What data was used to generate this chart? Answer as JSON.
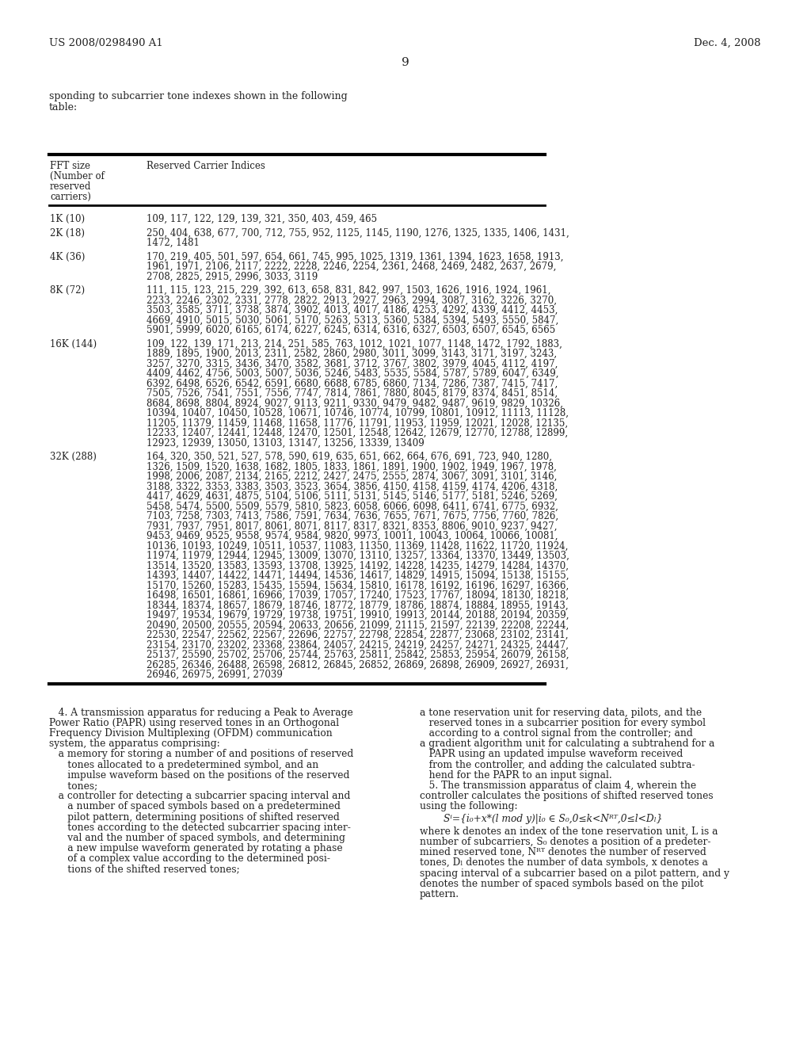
{
  "header_left": "US 2008/0298490 A1",
  "header_right": "Dec. 4, 2008",
  "page_number": "9",
  "intro_text": "sponding to subcarrier tone indexes shown in the following\ntable:",
  "table_col1_header": "FFT size\n(Number of\nreserved\ncarriers)",
  "table_col2_header": "Reserved Carrier Indices",
  "table_rows": [
    {
      "label": "1K (10)",
      "data": "109, 117, 122, 129, 139, 321, 350, 403, 459, 465"
    },
    {
      "label": "2K (18)",
      "data": "250, 404, 638, 677, 700, 712, 755, 952, 1125, 1145, 1190, 1276, 1325, 1335, 1406, 1431,\n1472, 1481"
    },
    {
      "label": "4K (36)",
      "data": "170, 219, 405, 501, 597, 654, 661, 745, 995, 1025, 1319, 1361, 1394, 1623, 1658, 1913,\n1961, 1971, 2106, 2117, 2222, 2228, 2246, 2254, 2361, 2468, 2469, 2482, 2637, 2679,\n2708, 2825, 2915, 2996, 3033, 3119"
    },
    {
      "label": "8K (72)",
      "data": "111, 115, 123, 215, 229, 392, 613, 658, 831, 842, 997, 1503, 1626, 1916, 1924, 1961,\n2233, 2246, 2302, 2331, 2778, 2822, 2913, 2927, 2963, 2994, 3087, 3162, 3226, 3270,\n3503, 3585, 3711, 3738, 3874, 3902, 4013, 4017, 4186, 4253, 4292, 4339, 4412, 4453,\n4669, 4910, 5015, 5030, 5061, 5170, 5263, 5313, 5360, 5384, 5394, 5493, 5550, 5847,\n5901, 5999, 6020, 6165, 6174, 6227, 6245, 6314, 6316, 6327, 6503, 6507, 6545, 6565"
    },
    {
      "label": "16K (144)",
      "data": "109, 122, 139, 171, 213, 214, 251, 585, 763, 1012, 1021, 1077, 1148, 1472, 1792, 1883,\n1889, 1895, 1900, 2013, 2311, 2582, 2860, 2980, 3011, 3099, 3143, 3171, 3197, 3243,\n3257, 3270, 3315, 3436, 3470, 3582, 3681, 3712, 3767, 3802, 3979, 4045, 4112, 4197,\n4409, 4462, 4756, 5003, 5007, 5036, 5246, 5483, 5535, 5584, 5787, 5789, 6047, 6349,\n6392, 6498, 6526, 6542, 6591, 6680, 6688, 6785, 6860, 7134, 7286, 7387, 7415, 7417,\n7505, 7526, 7541, 7551, 7556, 7747, 7814, 7861, 7880, 8045, 8179, 8374, 8451, 8514,\n8684, 8698, 8804, 8924, 9027, 9113, 9211, 9330, 9479, 9482, 9487, 9619, 9829, 10326,\n10394, 10407, 10450, 10528, 10671, 10746, 10774, 10799, 10801, 10912, 11113, 11128,\n11205, 11379, 11459, 11468, 11658, 11776, 11791, 11953, 11959, 12021, 12028, 12135,\n12233, 12407, 12441, 12448, 12470, 12501, 12548, 12642, 12679, 12770, 12788, 12899,\n12923, 12939, 13050, 13103, 13147, 13256, 13339, 13409"
    },
    {
      "label": "32K (288)",
      "data": "164, 320, 350, 521, 527, 578, 590, 619, 635, 651, 662, 664, 676, 691, 723, 940, 1280,\n1326, 1509, 1520, 1638, 1682, 1805, 1833, 1861, 1891, 1900, 1902, 1949, 1967, 1978,\n1998, 2006, 2087, 2134, 2165, 2212, 2427, 2475, 2555, 2874, 3067, 3091, 3101, 3146,\n3188, 3322, 3353, 3383, 3503, 3523, 3654, 3856, 4150, 4158, 4159, 4174, 4206, 4318,\n4417, 4629, 4631, 4875, 5104, 5106, 5111, 5131, 5145, 5146, 5177, 5181, 5246, 5269,\n5458, 5474, 5500, 5509, 5579, 5810, 5823, 6058, 6066, 6098, 6411, 6741, 6775, 6932,\n7103, 7258, 7303, 7413, 7586, 7591, 7634, 7636, 7655, 7671, 7675, 7756, 7760, 7826,\n7931, 7937, 7951, 8017, 8061, 8071, 8117, 8317, 8321, 8353, 8806, 9010, 9237, 9427,\n9453, 9469, 9525, 9558, 9574, 9584, 9820, 9973, 10011, 10043, 10064, 10066, 10081,\n10136, 10193, 10249, 10511, 10537, 11083, 11350, 11369, 11428, 11622, 11720, 11924,\n11974, 11979, 12944, 12945, 13009, 13070, 13110, 13257, 13364, 13370, 13449, 13503,\n13514, 13520, 13583, 13593, 13708, 13925, 14192, 14228, 14235, 14279, 14284, 14370,\n14393, 14407, 14422, 14471, 14494, 14536, 14617, 14829, 14915, 15094, 15138, 15155,\n15170, 15260, 15283, 15435, 15594, 15634, 15810, 16178, 16192, 16196, 16297, 16366,\n16498, 16501, 16861, 16966, 17039, 17057, 17240, 17523, 17767, 18094, 18130, 18218,\n18344, 18374, 18657, 18679, 18746, 18772, 18779, 18786, 18874, 18884, 18955, 19143,\n19497, 19534, 19679, 19729, 19738, 19751, 19910, 19913, 20144, 20188, 20194, 20359,\n20490, 20500, 20555, 20594, 20633, 20656, 21099, 21115, 21597, 22139, 22208, 22244,\n22530, 22547, 22562, 22567, 22696, 22757, 22798, 22854, 22877, 23068, 23102, 23141,\n23154, 23170, 23202, 23368, 23864, 24057, 24215, 24219, 24257, 24271, 24325, 24447,\n25137, 25590, 25702, 25706, 25744, 25763, 25811, 25842, 25853, 25954, 26079, 26158,\n26285, 26346, 26488, 26598, 26812, 26845, 26852, 26869, 26898, 26909, 26927, 26931,\n26946, 26975, 26991, 27039"
    }
  ],
  "claim4_left_lines": [
    "   4. A transmission apparatus for reducing a Peak to Average",
    "Power Ratio (PAPR) using reserved tones in an Orthogonal",
    "Frequency Division Multiplexing (OFDM) communication",
    "system, the apparatus comprising:",
    "   a memory for storing a number of and positions of reserved",
    "      tones allocated to a predetermined symbol, and an",
    "      impulse waveform based on the positions of the reserved",
    "      tones;",
    "   a controller for detecting a subcarrier spacing interval and",
    "      a number of spaced symbols based on a predetermined",
    "      pilot pattern, determining positions of shifted reserved",
    "      tones according to the detected subcarrier spacing inter-",
    "      val and the number of spaced symbols, and determining",
    "      a new impulse waveform generated by rotating a phase",
    "      of a complex value according to the determined posi-",
    "      tions of the shifted reserved tones;"
  ],
  "claim4_right_lines": [
    "a tone reservation unit for reserving data, pilots, and the",
    "   reserved tones in a subcarrier position for every symbol",
    "   according to a control signal from the controller; and",
    "a gradient algorithm unit for calculating a subtrahend for a",
    "   PAPR using an updated impulse waveform received",
    "   from the controller, and adding the calculated subtra-",
    "   hend for the PAPR to an input signal.",
    "   5. The transmission apparatus of claim 4, wherein the",
    "controller calculates the positions of shifted reserved tones",
    "using the following:"
  ],
  "formula": "Sⁱ={i₀+x*(l mod y)|i₀ ∈ S₀,0≤k<Nᴿᵀ,0≤l<Dₗ}",
  "formula_note_lines": [
    "where k denotes an index of the tone reservation unit, L is a",
    "number of subcarriers, S₀ denotes a position of a predeter-",
    "mined reserved tone, Nᴿᵀ denotes the number of reserved",
    "tones, Dₗ denotes the number of data symbols, x denotes a",
    "spacing interval of a subcarrier based on a pilot pattern, and y",
    "denotes the number of spaced symbols based on the pilot",
    "pattern."
  ]
}
